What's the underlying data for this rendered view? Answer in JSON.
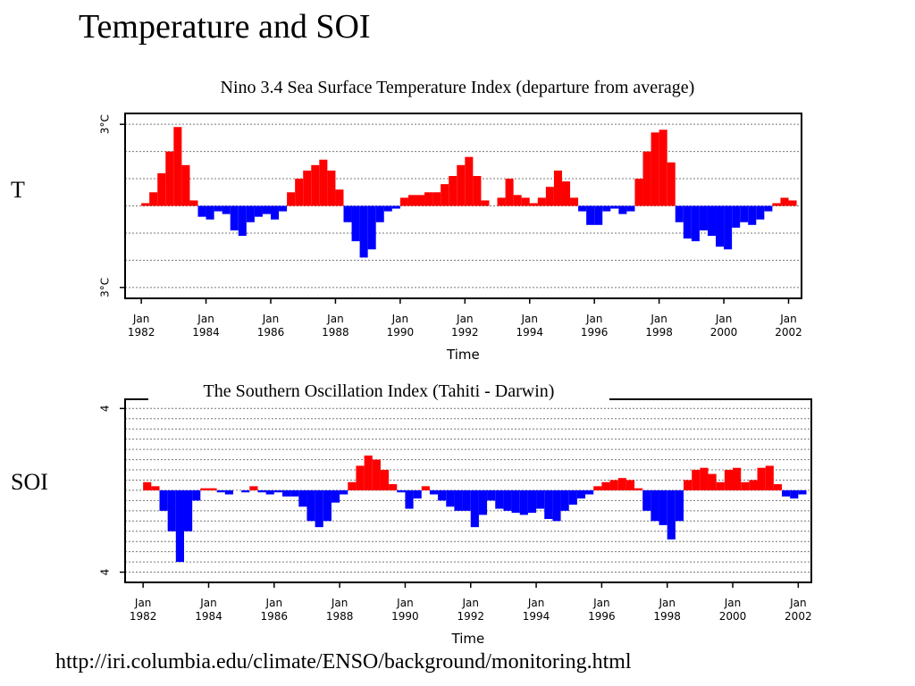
{
  "title": "Temperature and SOI",
  "left_labels": [
    "T",
    "SOI"
  ],
  "source_url": "http://iri.columbia.edu/climate/ENSO/background/monitoring.html",
  "chart_data": [
    {
      "type": "bar",
      "title": "Nino 3.4 Sea Surface Temperature Index (departure from average)",
      "xlabel": "Time",
      "positive_color": "#ff0000",
      "negative_color": "#0000ff",
      "xlim": [
        1981.5,
        2002.4
      ],
      "ylim": [
        -3.4,
        3.4
      ],
      "yticks": [
        {
          "value": 3,
          "label": "3°C"
        },
        {
          "value": -3,
          "label": "3°C"
        }
      ],
      "ygrid": [
        -3,
        -2,
        -1,
        0,
        1,
        2,
        3
      ],
      "xticks": [
        {
          "value": 1982,
          "label": "Jan 1982"
        },
        {
          "value": 1984,
          "label": "Jan 1984"
        },
        {
          "value": 1986,
          "label": "Jan 1986"
        },
        {
          "value": 1988,
          "label": "Jan 1988"
        },
        {
          "value": 1990,
          "label": "Jan 1990"
        },
        {
          "value": 1992,
          "label": "Jan 1992"
        },
        {
          "value": 1994,
          "label": "Jan 1994"
        },
        {
          "value": 1996,
          "label": "Jan 1996"
        },
        {
          "value": 1998,
          "label": "Jan 1998"
        },
        {
          "value": 2000,
          "label": "Jan 2000"
        },
        {
          "value": 2002,
          "label": "Jan 2002"
        }
      ],
      "x": [
        1982,
        1982.25,
        1982.5,
        1982.75,
        1983,
        1983.25,
        1983.5,
        1983.75,
        1984,
        1984.25,
        1984.5,
        1984.75,
        1985,
        1985.25,
        1985.5,
        1985.75,
        1986,
        1986.25,
        1986.5,
        1986.75,
        1987,
        1987.25,
        1987.5,
        1987.75,
        1988,
        1988.25,
        1988.5,
        1988.75,
        1989,
        1989.25,
        1989.5,
        1989.75,
        1990,
        1990.25,
        1990.5,
        1990.75,
        1991,
        1991.25,
        1991.5,
        1991.75,
        1992,
        1992.25,
        1992.5,
        1992.75,
        1993,
        1993.25,
        1993.5,
        1993.75,
        1994,
        1994.25,
        1994.5,
        1994.75,
        1995,
        1995.25,
        1995.5,
        1995.75,
        1996,
        1996.25,
        1996.5,
        1996.75,
        1997,
        1997.25,
        1997.5,
        1997.75,
        1998,
        1998.25,
        1998.5,
        1998.75,
        1999,
        1999.25,
        1999.5,
        1999.75,
        2000,
        2000.25,
        2000.5,
        2000.75,
        2001,
        2001.25,
        2001.5,
        2001.75,
        2002
      ],
      "values": [
        0.1,
        0.5,
        1.2,
        2.0,
        2.9,
        1.5,
        0.2,
        -0.4,
        -0.5,
        -0.2,
        -0.3,
        -0.9,
        -1.1,
        -0.6,
        -0.4,
        -0.3,
        -0.5,
        -0.2,
        0.5,
        1.0,
        1.3,
        1.5,
        1.7,
        1.3,
        0.6,
        -0.6,
        -1.3,
        -1.9,
        -1.6,
        -0.6,
        -0.2,
        -0.1,
        0.3,
        0.4,
        0.4,
        0.5,
        0.5,
        0.8,
        1.1,
        1.5,
        1.8,
        1.1,
        0.2,
        0.0,
        0.3,
        1.0,
        0.4,
        0.3,
        0.1,
        0.3,
        0.7,
        1.3,
        0.9,
        0.3,
        -0.2,
        -0.7,
        -0.7,
        -0.2,
        -0.1,
        -0.3,
        -0.2,
        1.0,
        2.0,
        2.7,
        2.8,
        1.6,
        -0.6,
        -1.2,
        -1.3,
        -0.9,
        -1.1,
        -1.5,
        -1.6,
        -0.8,
        -0.6,
        -0.7,
        -0.5,
        -0.2,
        0.1,
        0.3,
        0.2
      ]
    },
    {
      "type": "bar",
      "title": "The Southern Oscillation Index (Tahiti - Darwin)",
      "xlabel": "Time",
      "positive_color": "#ff0000",
      "negative_color": "#0000ff",
      "xlim": [
        1981.45,
        2002.4
      ],
      "ylim": [
        -4.5,
        4.45
      ],
      "yticks": [
        {
          "value": 4,
          "label": "4"
        },
        {
          "value": -4,
          "label": "4"
        }
      ],
      "ygrid": [
        -4,
        -3.5,
        -3,
        -2.5,
        -2,
        -1.5,
        -1,
        -0.5,
        0,
        0.5,
        1,
        1.5,
        2,
        2.5,
        3,
        3.5,
        4
      ],
      "xticks": [
        {
          "value": 1982,
          "label": "Jan 1982"
        },
        {
          "value": 1984,
          "label": "Jan 1984"
        },
        {
          "value": 1986,
          "label": "Jan 1986"
        },
        {
          "value": 1988,
          "label": "Jan 1988"
        },
        {
          "value": 1990,
          "label": "Jan 1990"
        },
        {
          "value": 1992,
          "label": "Jan 1992"
        },
        {
          "value": 1994,
          "label": "Jan 1994"
        },
        {
          "value": 1996,
          "label": "Jan 1996"
        },
        {
          "value": 1998,
          "label": "Jan 1998"
        },
        {
          "value": 2000,
          "label": "Jan 2000"
        },
        {
          "value": 2002,
          "label": "Jan 2002"
        }
      ],
      "x": [
        1982,
        1982.25,
        1982.5,
        1982.75,
        1983,
        1983.25,
        1983.5,
        1983.75,
        1984,
        1984.25,
        1984.5,
        1984.75,
        1985,
        1985.25,
        1985.5,
        1985.75,
        1986,
        1986.25,
        1986.5,
        1986.75,
        1987,
        1987.25,
        1987.5,
        1987.75,
        1988,
        1988.25,
        1988.5,
        1988.75,
        1989,
        1989.25,
        1989.5,
        1989.75,
        1990,
        1990.25,
        1990.5,
        1990.75,
        1991,
        1991.25,
        1991.5,
        1991.75,
        1992,
        1992.25,
        1992.5,
        1992.75,
        1993,
        1993.25,
        1993.5,
        1993.75,
        1994,
        1994.25,
        1994.5,
        1994.75,
        1995,
        1995.25,
        1995.5,
        1995.75,
        1996,
        1996.25,
        1996.5,
        1996.75,
        1997,
        1997.25,
        1997.5,
        1997.75,
        1998,
        1998.25,
        1998.5,
        1998.75,
        1999,
        1999.25,
        1999.5,
        1999.75,
        2000,
        2000.25,
        2000.5,
        2000.75,
        2001,
        2001.25,
        2001.5,
        2001.75,
        2002
      ],
      "values": [
        0.4,
        0.2,
        -1.0,
        -2.0,
        -3.5,
        -2.0,
        -0.5,
        0.1,
        0.1,
        -0.1,
        -0.2,
        0.0,
        -0.1,
        0.2,
        -0.1,
        -0.2,
        -0.1,
        -0.3,
        -0.3,
        -0.8,
        -1.5,
        -1.8,
        -1.5,
        -0.6,
        -0.2,
        0.4,
        1.2,
        1.7,
        1.5,
        1.0,
        0.3,
        -0.1,
        -0.9,
        -0.4,
        0.2,
        -0.2,
        -0.5,
        -0.8,
        -1.0,
        -1.0,
        -1.8,
        -1.2,
        -0.5,
        -0.9,
        -1.0,
        -1.1,
        -1.2,
        -1.1,
        -0.9,
        -1.4,
        -1.5,
        -1.0,
        -0.7,
        -0.4,
        -0.2,
        0.2,
        0.4,
        0.5,
        0.6,
        0.5,
        0.1,
        -1.0,
        -1.5,
        -1.7,
        -2.4,
        -1.5,
        0.5,
        1.0,
        1.1,
        0.8,
        0.4,
        1.0,
        1.1,
        0.4,
        0.5,
        1.1,
        1.2,
        0.3,
        -0.3,
        -0.4,
        -0.2
      ]
    }
  ]
}
